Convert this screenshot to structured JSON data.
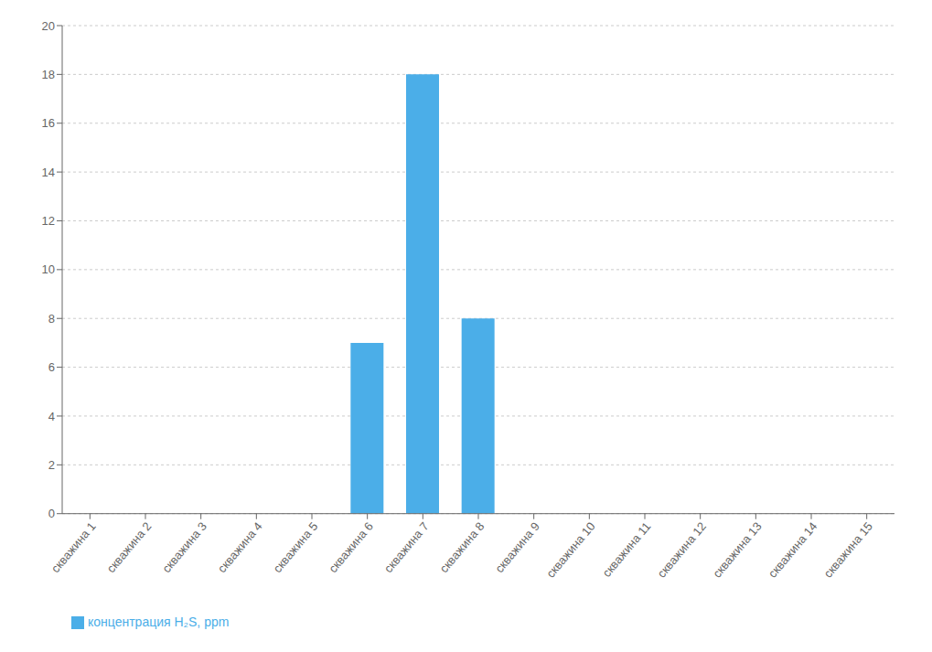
{
  "chart_data": {
    "type": "bar",
    "categories": [
      "скважина 1",
      "скважина 2",
      "скважина 3",
      "скважина 4",
      "скважина 5",
      "скважина 6",
      "скважина 7",
      "скважина 8",
      "скважина 9",
      "скважина 10",
      "скважина 11",
      "скважина 12",
      "скважина 13",
      "скважина 14",
      "скважина 15"
    ],
    "series": [
      {
        "name": "концентрация H₂S, ppm",
        "color": "#4baee8",
        "values": [
          0,
          0,
          0,
          0,
          0,
          7,
          18,
          8,
          0,
          0,
          0,
          0,
          0,
          0,
          0
        ]
      }
    ],
    "ylim": [
      0,
      20
    ],
    "yticks": [
      0,
      2,
      4,
      6,
      8,
      10,
      12,
      14,
      16,
      18,
      20
    ],
    "grid": true,
    "legend": "bottom left"
  }
}
